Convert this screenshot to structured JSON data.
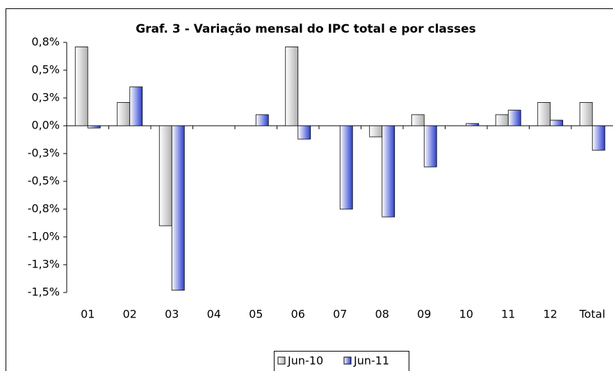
{
  "chart_data": {
    "type": "bar",
    "title": "Graf. 3 - Variação mensal do IPC total e por classes",
    "categories": [
      "01",
      "02",
      "03",
      "04",
      "05",
      "06",
      "07",
      "08",
      "09",
      "10",
      "11",
      "12",
      "Total"
    ],
    "series": [
      {
        "name": "Jun-10",
        "color": "#b0b0b0",
        "values": [
          0.71,
          0.21,
          -0.9,
          0,
          0,
          0.71,
          0,
          -0.1,
          0.1,
          0,
          0.1,
          0.21,
          0.21
        ]
      },
      {
        "name": "Jun-11",
        "color": "#2a3fd0",
        "values": [
          -0.02,
          0.35,
          -1.48,
          0,
          0.1,
          -0.12,
          -0.75,
          -0.82,
          -0.37,
          0.02,
          0.14,
          0.05,
          -0.22
        ]
      }
    ],
    "ylim": [
      -1.5,
      0.75
    ],
    "yticks": [
      {
        "value": 0.75,
        "label": "0,8%"
      },
      {
        "value": 0.5,
        "label": "0,5%"
      },
      {
        "value": 0.25,
        "label": "0,3%"
      },
      {
        "value": 0,
        "label": "0,0%"
      },
      {
        "value": -0.25,
        "label": "-0,3%"
      },
      {
        "value": -0.5,
        "label": "-0,5%"
      },
      {
        "value": -0.75,
        "label": "-0,8%"
      },
      {
        "value": -1.0,
        "label": "-1,0%"
      },
      {
        "value": -1.25,
        "label": "-1,3%"
      },
      {
        "value": -1.5,
        "label": "-1,5%"
      }
    ],
    "legend": "bottom"
  }
}
